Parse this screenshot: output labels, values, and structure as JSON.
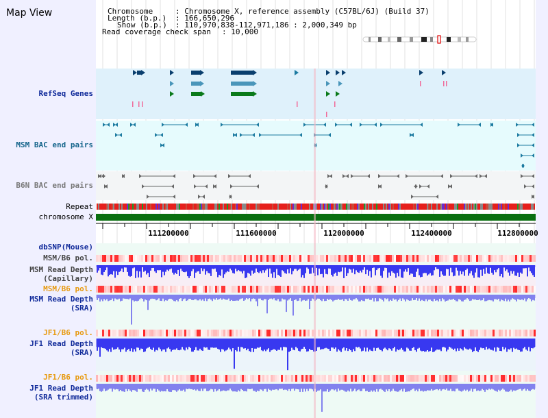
{
  "title": "Map View",
  "header": {
    "chromosome_key": "Chromosome",
    "chromosome_val": ": Chromosome X, reference assembly (C57BL/6J) (Build 37)",
    "length_key": "Length (b.p.)",
    "length_val": ": 166,650,296",
    "show_key": "Show (b.p.)",
    "show_val": ": 110,970,838-112,971,186 : 2,000,349 bp",
    "coverage_key": "Read coverage check span",
    "coverage_val": ": 10,000"
  },
  "tracks": {
    "refseq": "RefSeq Genes",
    "msm_bac": "MSM BAC end pairs",
    "b6n_bac": "B6N BAC end pairs",
    "repeat": "Repeat",
    "chrom": "chromosome X",
    "dbsnp": "dbSNP(Mouse)",
    "msm_pol": "MSM/B6 pol.",
    "msm_cap_1": "MSM Read Depth",
    "msm_cap_2": "(Capillary)",
    "msm_pol2": "MSM/B6 pol.",
    "msm_sra_1": "MSM Read Depth",
    "msm_sra_2": "(SRA)",
    "jf1_pol": "JF1/B6 pol.",
    "jf1_sra_1": "JF1 Read Depth",
    "jf1_sra_2": "(SRA)",
    "jf1_pol2": "JF1/B6 pol.",
    "jf1_trim_1": "JF1 Read Depth",
    "jf1_trim_2": "(SRA trimmed)"
  },
  "axis_ticks": [
    "111200000",
    "111600000",
    "112000000",
    "112400000",
    "112800000"
  ],
  "colors": {
    "page_bg": "#f0f0ff",
    "refseq_bg": "#dff1fb",
    "msm_bac_bg": "#e6fbfd",
    "b6n_bac_bg": "#f3f5f6",
    "track_bg": "#eefaf5",
    "chromosome": "#0a6f10",
    "gene_dark": "#0a3f6e",
    "gene_mid": "#4a96ba",
    "gene_green": "#0a7a1a",
    "msm_bac": "#1b7aa0",
    "b6n_bac": "#666666",
    "depth_blue": "#3838f0",
    "depth_violet": "#8282ee",
    "pol_red": "#ff3030",
    "highlight": "#f4b6c2",
    "label_blue": "#102a9a",
    "label_teal": "#15658b",
    "label_orange": "#e79a10",
    "label_gray": "#444444"
  }
}
